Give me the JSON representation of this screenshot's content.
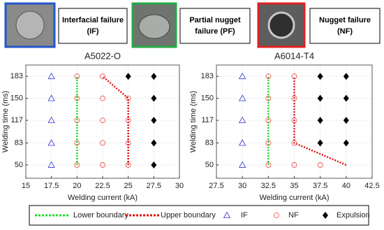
{
  "header": [
    {
      "lines": [
        "Interfacial failure",
        "(IF)"
      ],
      "color": "#2255cc"
    },
    {
      "lines": [
        "Partial nugget",
        "failure (PF)"
      ],
      "color": "#22aa44"
    },
    {
      "lines": [
        "Nugget failure",
        "(NF)"
      ],
      "color": "#dd2222"
    }
  ],
  "chart_data": [
    {
      "type": "scatter",
      "title": "A5022-O",
      "x_label": "Welding current (kA)",
      "y_label": "Welding time (ms)",
      "xlim": [
        15,
        30
      ],
      "xticks": [
        15,
        17.5,
        20,
        22.5,
        25,
        27.5,
        30
      ],
      "ylim": [
        30,
        200
      ],
      "yticks": [
        50,
        83,
        117,
        150,
        183
      ],
      "grid": true,
      "series": [
        {
          "name": "Lower boundary",
          "marker": "line",
          "color": "#22dd22",
          "x": [
            20,
            20
          ],
          "values": [
            50,
            183
          ]
        },
        {
          "name": "Upper boundary",
          "marker": "line",
          "color": "#dd1111",
          "x": [
            25,
            25,
            22.5
          ],
          "values": [
            50,
            150,
            183
          ]
        },
        {
          "name": "IF",
          "marker": "triangle",
          "color": "#3333cc",
          "x": [
            17.5,
            17.5,
            17.5,
            17.5,
            17.5
          ],
          "values": [
            50,
            83,
            117,
            150,
            183
          ]
        },
        {
          "name": "NF",
          "marker": "circle",
          "color": "#ee4444",
          "x": [
            20,
            20,
            20,
            20,
            20,
            22.5,
            22.5,
            22.5,
            22.5,
            22.5,
            25,
            25,
            25,
            25
          ],
          "values": [
            50,
            83,
            117,
            150,
            183,
            50,
            83,
            117,
            150,
            183,
            50,
            83,
            117,
            150
          ]
        },
        {
          "name": "Expulsion",
          "marker": "diamond",
          "color": "#000000",
          "x": [
            25,
            27.5,
            27.5,
            27.5,
            27.5,
            27.5
          ],
          "values": [
            183,
            50,
            83,
            117,
            150,
            183
          ]
        }
      ]
    },
    {
      "type": "scatter",
      "title": "A6014-T4",
      "x_label": "Welding current (kA)",
      "y_label": "Welding time (ms)",
      "xlim": [
        27.5,
        42.5
      ],
      "xticks": [
        27.5,
        30,
        32.5,
        35,
        37.5,
        40,
        42.5
      ],
      "ylim": [
        30,
        200
      ],
      "yticks": [
        50,
        83,
        117,
        150,
        183
      ],
      "grid": true,
      "series": [
        {
          "name": "Lower boundary",
          "marker": "line",
          "color": "#22dd22",
          "x": [
            32.5,
            32.5
          ],
          "values": [
            50,
            183
          ]
        },
        {
          "name": "Upper boundary",
          "marker": "line",
          "color": "#dd1111",
          "x": [
            40,
            35,
            35
          ],
          "values": [
            50,
            83,
            183
          ]
        },
        {
          "name": "IF",
          "marker": "triangle",
          "color": "#3333cc",
          "x": [
            30,
            30,
            30,
            30,
            30
          ],
          "values": [
            50,
            83,
            117,
            150,
            183
          ]
        },
        {
          "name": "NF",
          "marker": "circle",
          "color": "#ee4444",
          "x": [
            32.5,
            32.5,
            32.5,
            32.5,
            32.5,
            35,
            35,
            35,
            35,
            35,
            37.5
          ],
          "values": [
            50,
            83,
            117,
            150,
            183,
            50,
            83,
            117,
            150,
            183,
            50
          ]
        },
        {
          "name": "Expulsion",
          "marker": "diamond",
          "color": "#000000",
          "x": [
            37.5,
            37.5,
            37.5,
            37.5,
            40,
            40,
            40,
            40
          ],
          "values": [
            83,
            117,
            150,
            183,
            83,
            117,
            150,
            183
          ]
        }
      ]
    }
  ]
}
